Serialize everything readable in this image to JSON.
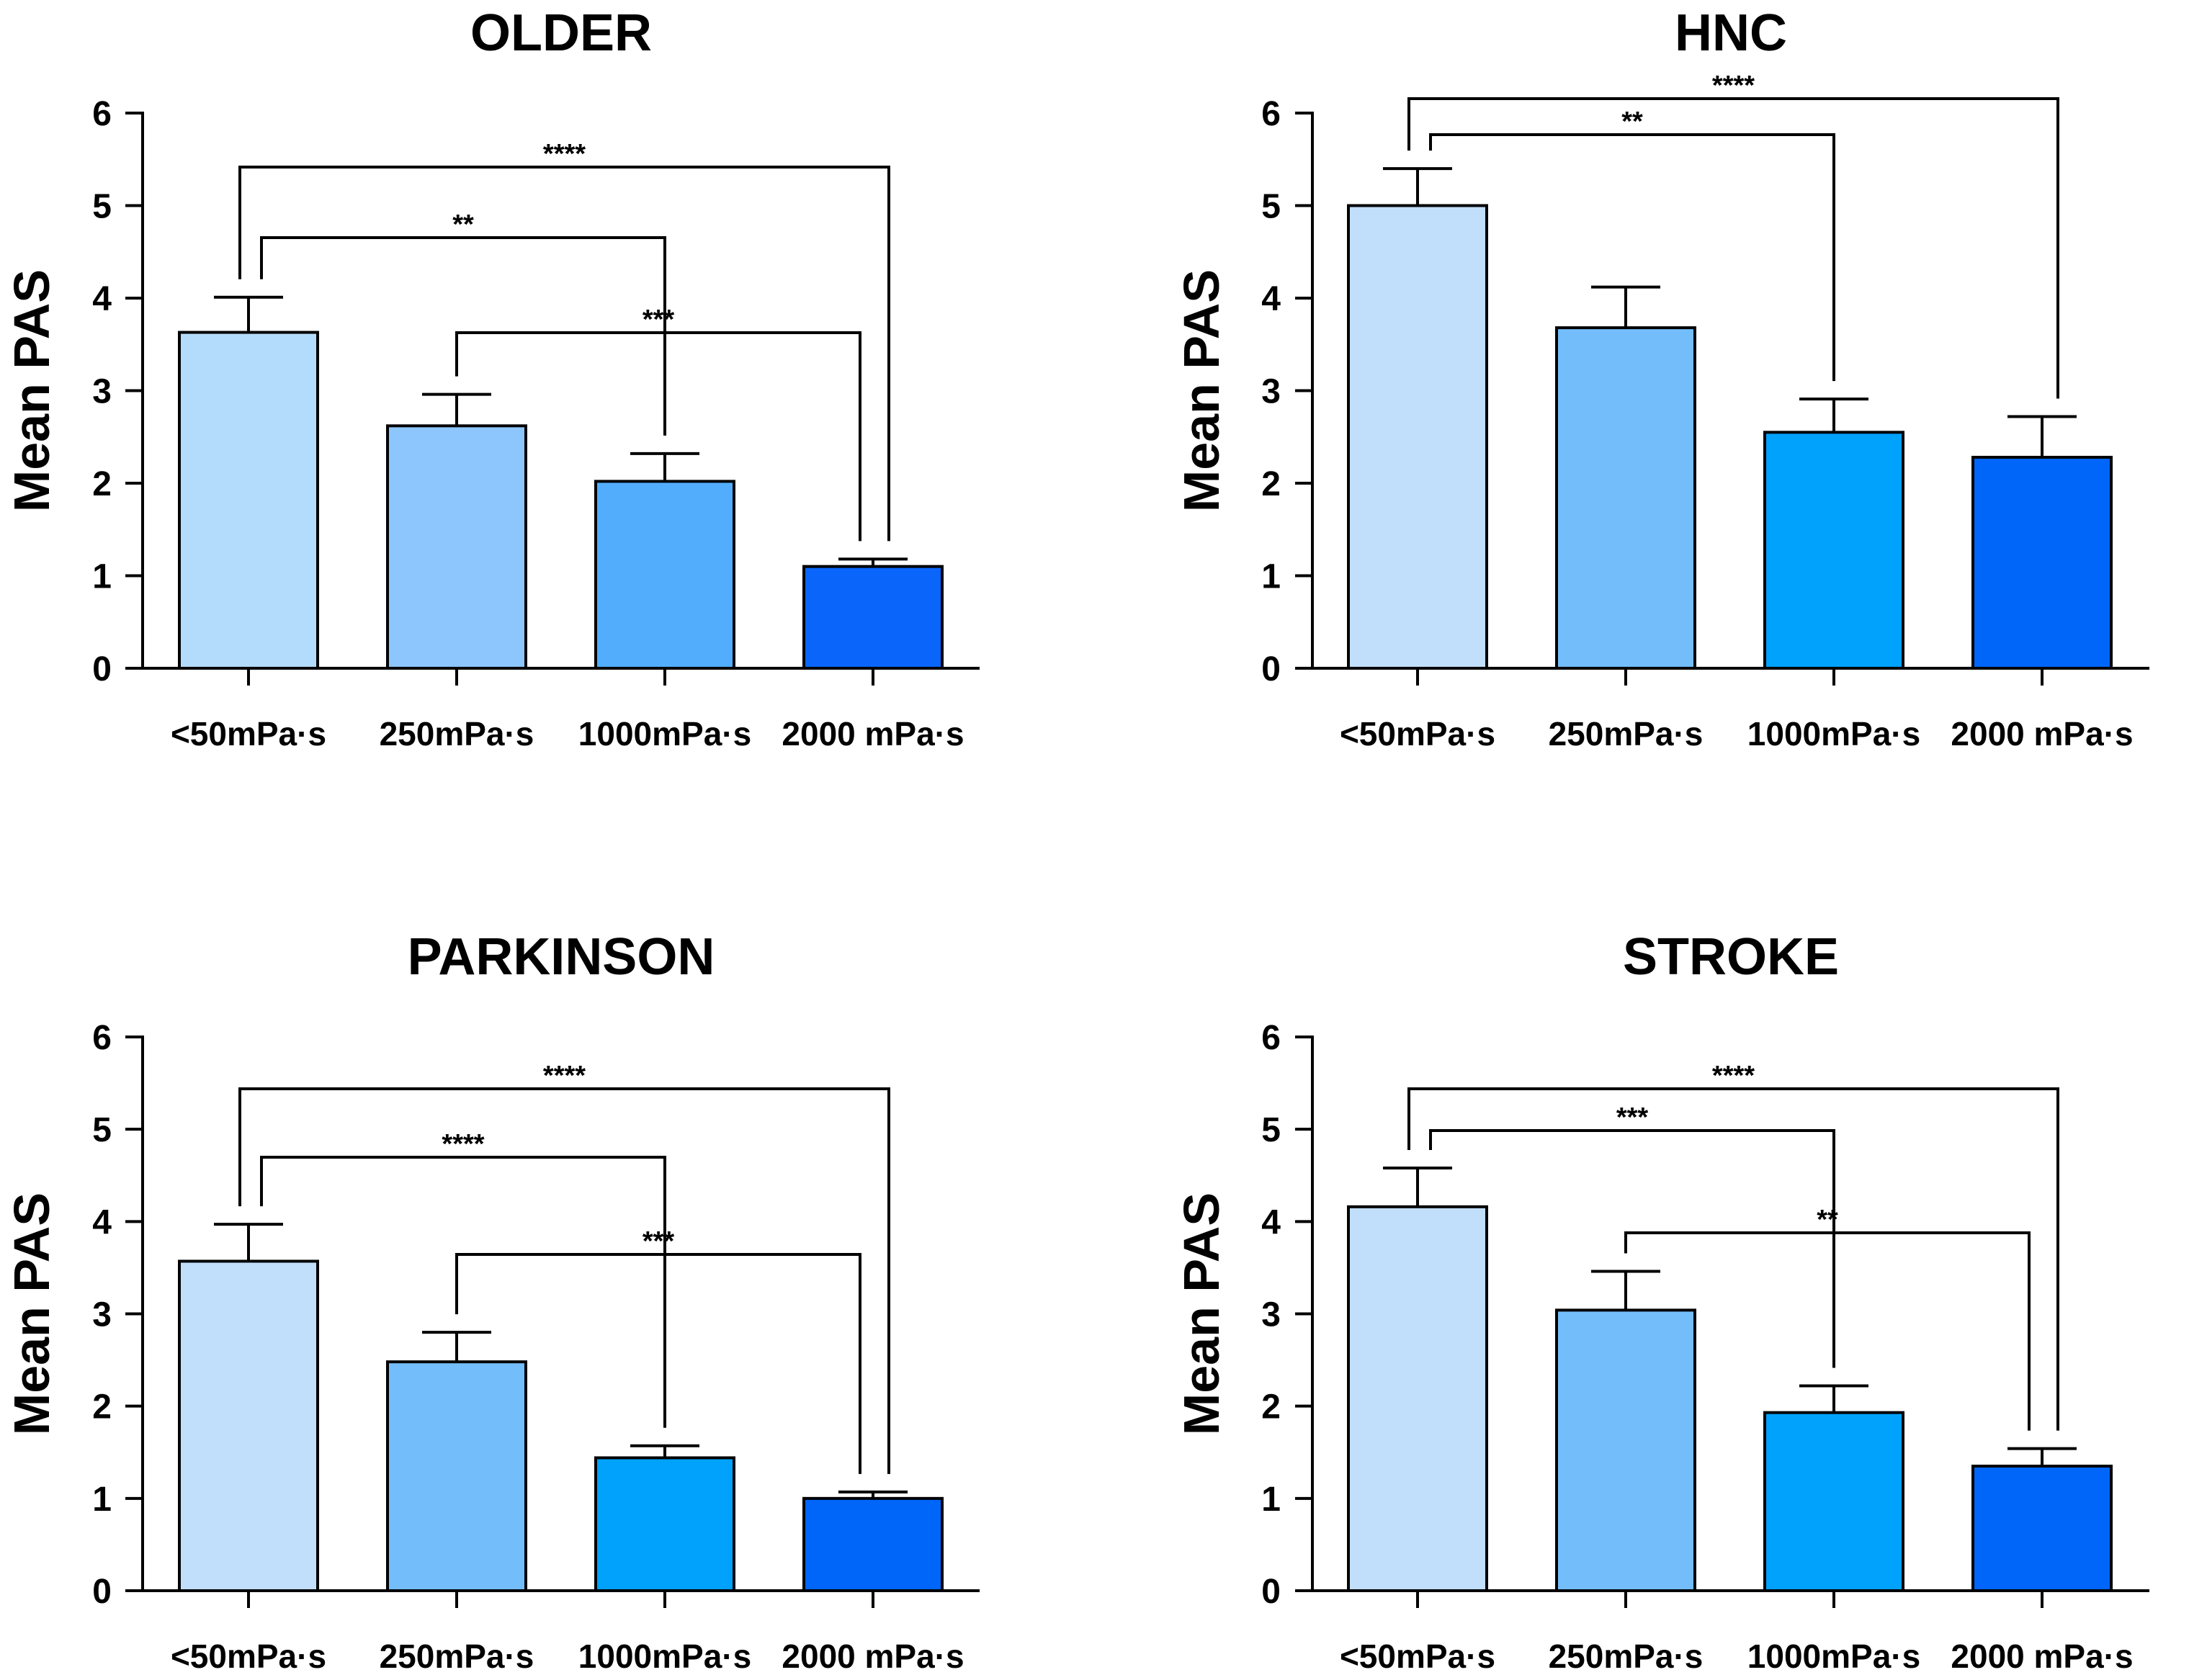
{
  "chart_data": [
    {
      "type": "bar",
      "title": "OLDER",
      "ylabel": "Mean PAS",
      "ylim": [
        0,
        6
      ],
      "yticks": [
        "0",
        "1",
        "2",
        "3",
        "4",
        "5",
        "6"
      ],
      "categories": [
        "<50mPa·s",
        "250mPa·s",
        "1000mPa·s",
        "2000 mPa·s"
      ],
      "values": [
        3.63,
        2.62,
        2.02,
        1.1
      ],
      "errors": [
        0.38,
        0.34,
        0.3,
        0.08
      ],
      "colors": [
        "#b3dcfc",
        "#8cc6fc",
        "#52aefc",
        "#0a66fa"
      ],
      "comparisons": [
        {
          "from": 0,
          "to": 3,
          "label": "****"
        },
        {
          "from": 0,
          "to": 2,
          "label": "**"
        },
        {
          "from": 1,
          "to": 3,
          "label": "***"
        }
      ]
    },
    {
      "type": "bar",
      "title": "HNC",
      "ylabel": "Mean PAS",
      "ylim": [
        0,
        6
      ],
      "yticks": [
        "0",
        "1",
        "2",
        "3",
        "4",
        "5",
        "6"
      ],
      "categories": [
        "<50mPa·s",
        "250mPa·s",
        "1000mPa·s",
        "2000 mPa·s"
      ],
      "values": [
        5.0,
        3.68,
        2.55,
        2.28
      ],
      "errors": [
        0.4,
        0.44,
        0.36,
        0.44
      ],
      "colors": [
        "#c1dffb",
        "#73bdfb",
        "#00a2fc",
        "#0066fa"
      ],
      "comparisons": [
        {
          "from": 0,
          "to": 3,
          "label": "****"
        },
        {
          "from": 0,
          "to": 2,
          "label": "**"
        }
      ]
    },
    {
      "type": "bar",
      "title": "PARKINSON",
      "ylabel": "Mean PAS",
      "ylim": [
        0,
        6
      ],
      "yticks": [
        "0",
        "1",
        "2",
        "3",
        "4",
        "5",
        "6"
      ],
      "categories": [
        "<50mPa·s",
        "250mPa·s",
        "1000mPa·s",
        "2000 mPa·s"
      ],
      "values": [
        3.57,
        2.48,
        1.44,
        1.0
      ],
      "errors": [
        0.4,
        0.32,
        0.13,
        0.07
      ],
      "colors": [
        "#c1dffb",
        "#73bdfb",
        "#00a2fc",
        "#0066fa"
      ],
      "comparisons": [
        {
          "from": 0,
          "to": 3,
          "label": "****"
        },
        {
          "from": 0,
          "to": 2,
          "label": "****"
        },
        {
          "from": 1,
          "to": 3,
          "label": "***"
        }
      ]
    },
    {
      "type": "bar",
      "title": "STROKE",
      "ylabel": "Mean PAS",
      "ylim": [
        0,
        6
      ],
      "yticks": [
        "0",
        "1",
        "2",
        "3",
        "4",
        "5",
        "6"
      ],
      "categories": [
        "<50mPa·s",
        "250mPa·s",
        "1000mPa·s",
        "2000 mPa·s"
      ],
      "values": [
        4.16,
        3.04,
        1.93,
        1.35
      ],
      "errors": [
        0.42,
        0.42,
        0.29,
        0.19
      ],
      "colors": [
        "#c1dffb",
        "#73bdfb",
        "#00a2fc",
        "#0066fa"
      ],
      "comparisons": [
        {
          "from": 0,
          "to": 3,
          "label": "****"
        },
        {
          "from": 0,
          "to": 2,
          "label": "***"
        },
        {
          "from": 1,
          "to": 3,
          "label": "**"
        }
      ]
    }
  ]
}
